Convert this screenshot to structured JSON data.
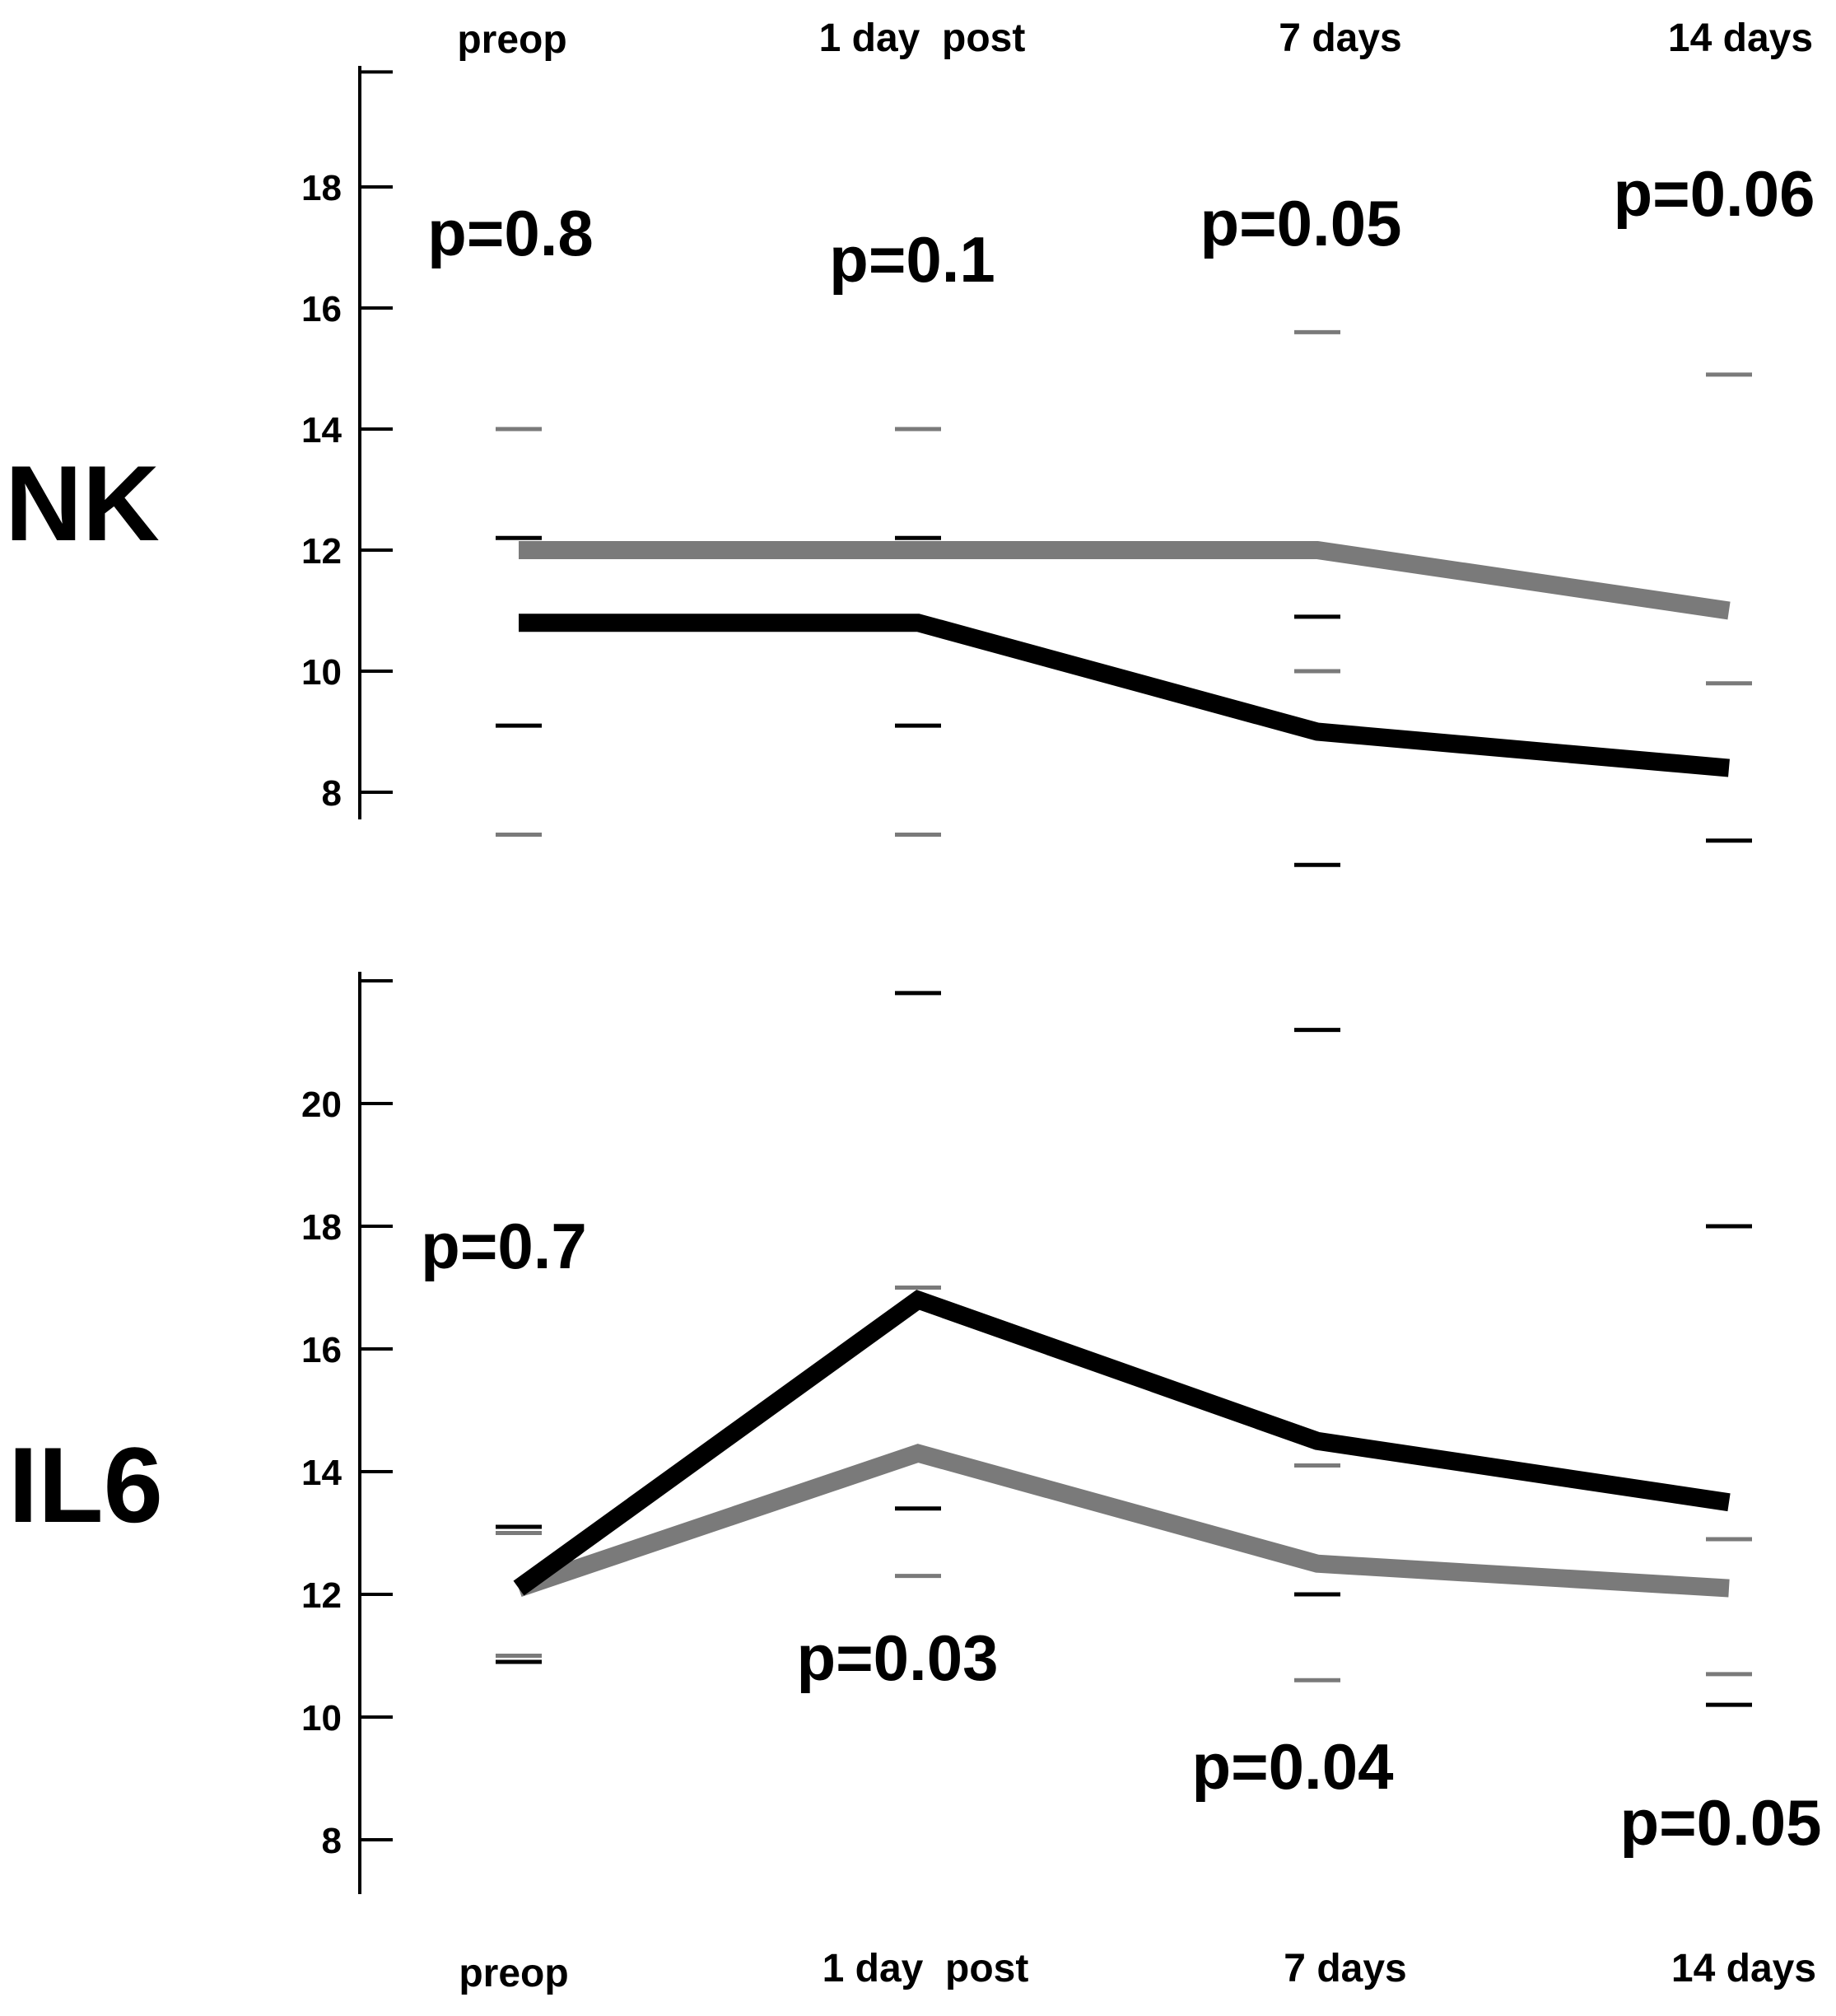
{
  "chart_data": [
    {
      "type": "line",
      "panel_label": "NK",
      "categories": [
        "preop",
        "1 day  post",
        "7 days",
        "14 days"
      ],
      "y_ticks": [
        8,
        10,
        12,
        14,
        16,
        18
      ],
      "ylim": [
        7.3,
        19.9
      ],
      "series": [
        {
          "name": "black",
          "color": "#000000",
          "values": [
            10.8,
            10.8,
            9.0,
            8.4
          ],
          "err_low": [
            9.1,
            9.1,
            6.8,
            7.2
          ],
          "err_high": [
            12.2,
            12.2,
            10.9,
            null
          ]
        },
        {
          "name": "gray",
          "color": "#7a7a7a",
          "values": [
            12.0,
            12.0,
            12.0,
            11.0
          ],
          "err_low": [
            7.3,
            7.3,
            10.0,
            9.8
          ],
          "err_high": [
            14.0,
            14.0,
            15.6,
            14.9
          ]
        }
      ],
      "p_values": [
        "p=0.8",
        "p=0.1",
        "p=0.05",
        "p=0.06"
      ]
    },
    {
      "type": "line",
      "panel_label": "IL6",
      "categories": [
        "preop",
        "1 day  post",
        "7 days",
        "14 days"
      ],
      "y_ticks": [
        8,
        10,
        12,
        14,
        16,
        18,
        20
      ],
      "ylim": [
        7.3,
        22.0
      ],
      "series": [
        {
          "name": "black",
          "color": "#000000",
          "values": [
            12.1,
            16.8,
            14.5,
            13.5
          ],
          "err_low": [
            10.9,
            13.4,
            12.0,
            10.2
          ],
          "err_high": [
            13.1,
            21.8,
            21.2,
            18.0
          ]
        },
        {
          "name": "gray",
          "color": "#7a7a7a",
          "values": [
            12.1,
            14.3,
            12.5,
            12.1
          ],
          "err_low": [
            11.0,
            12.3,
            10.6,
            10.7
          ],
          "err_high": [
            13.0,
            17.0,
            14.1,
            12.9
          ]
        }
      ],
      "p_values": [
        "p=0.7",
        "p=0.03",
        "p=0.04",
        "p=0.05"
      ]
    }
  ]
}
